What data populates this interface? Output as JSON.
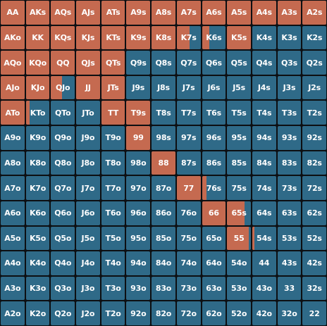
{
  "colors": {
    "raise": "#c56a50",
    "fold": "#2f6a88",
    "background": "#0d0f12",
    "text": "#ffffff"
  },
  "hands": [
    [
      "AA",
      "AKs",
      "AQs",
      "AJs",
      "ATs",
      "A9s",
      "A8s",
      "A7s",
      "A6s",
      "A5s",
      "A4s",
      "A3s",
      "A2s"
    ],
    [
      "AKo",
      "KK",
      "KQs",
      "KJs",
      "KTs",
      "K9s",
      "K8s",
      "K7s",
      "K6s",
      "K5s",
      "K4s",
      "K3s",
      "K2s"
    ],
    [
      "AQo",
      "KQo",
      "QQ",
      "QJs",
      "QTs",
      "Q9s",
      "Q8s",
      "Q7s",
      "Q6s",
      "Q5s",
      "Q4s",
      "Q3s",
      "Q2s"
    ],
    [
      "AJo",
      "KJo",
      "QJo",
      "JJ",
      "JTs",
      "J9s",
      "J8s",
      "J7s",
      "J6s",
      "J5s",
      "J4s",
      "J3s",
      "J2s"
    ],
    [
      "ATo",
      "KTo",
      "QTo",
      "JTo",
      "TT",
      "T9s",
      "T8s",
      "T7s",
      "T6s",
      "T5s",
      "T4s",
      "T3s",
      "T2s"
    ],
    [
      "A9o",
      "K9o",
      "Q9o",
      "J9o",
      "T9o",
      "99",
      "98s",
      "97s",
      "96s",
      "95s",
      "94s",
      "93s",
      "92s"
    ],
    [
      "A8o",
      "K8o",
      "Q8o",
      "J8o",
      "T8o",
      "98o",
      "88",
      "87s",
      "86s",
      "85s",
      "84s",
      "83s",
      "82s"
    ],
    [
      "A7o",
      "K7o",
      "Q7o",
      "J7o",
      "T7o",
      "97o",
      "87o",
      "77",
      "76s",
      "75s",
      "74s",
      "73s",
      "72s"
    ],
    [
      "A6o",
      "K6o",
      "Q6o",
      "J6o",
      "T6o",
      "96o",
      "86o",
      "76o",
      "66",
      "65s",
      "64s",
      "63s",
      "62s"
    ],
    [
      "A5o",
      "K5o",
      "Q5o",
      "J5o",
      "T5o",
      "95o",
      "85o",
      "75o",
      "65o",
      "55",
      "54s",
      "53s",
      "52s"
    ],
    [
      "A4o",
      "K4o",
      "Q4o",
      "J4o",
      "T4o",
      "94o",
      "84o",
      "74o",
      "64o",
      "54o",
      "44",
      "43s",
      "42s"
    ],
    [
      "A3o",
      "K3o",
      "Q3o",
      "J3o",
      "T3o",
      "93o",
      "83o",
      "73o",
      "63o",
      "53o",
      "43o",
      "33",
      "32s"
    ],
    [
      "A2o",
      "K2o",
      "Q2o",
      "J2o",
      "T2o",
      "92o",
      "82o",
      "72o",
      "62o",
      "52o",
      "42o",
      "32o",
      "22"
    ]
  ],
  "raise_frequency": [
    [
      1,
      1,
      1,
      1,
      1,
      1,
      1,
      1,
      1,
      1,
      1,
      1,
      1
    ],
    [
      1,
      1,
      1,
      1,
      1,
      1,
      1,
      0.55,
      0.3,
      1,
      0,
      0,
      0
    ],
    [
      1,
      1,
      1,
      1,
      1,
      0,
      0,
      0,
      0,
      0,
      0,
      0,
      0
    ],
    [
      1,
      1,
      0.45,
      1,
      1,
      0,
      0,
      0,
      0,
      0,
      0,
      0,
      0
    ],
    [
      1,
      0.15,
      0,
      0,
      1,
      1,
      0,
      0,
      0,
      0,
      0,
      0,
      0
    ],
    [
      0,
      0,
      0,
      0,
      0,
      1,
      0,
      0,
      0,
      0,
      0,
      0,
      0
    ],
    [
      0,
      0,
      0,
      0,
      0,
      0,
      1,
      0,
      0,
      0,
      0,
      0,
      0
    ],
    [
      0,
      0,
      0,
      0,
      0,
      0,
      0,
      1,
      0.2,
      0,
      0,
      0,
      0
    ],
    [
      0,
      0,
      0,
      0,
      0,
      0,
      0,
      0,
      1,
      0.75,
      0,
      0,
      0
    ],
    [
      0,
      0,
      0,
      0,
      0,
      0,
      0,
      0,
      0,
      0.9,
      0.1,
      0,
      0
    ],
    [
      0,
      0,
      0,
      0,
      0,
      0,
      0,
      0,
      0,
      0,
      0,
      0,
      0
    ],
    [
      0,
      0,
      0,
      0,
      0,
      0,
      0,
      0,
      0,
      0,
      0,
      0,
      0
    ],
    [
      0,
      0,
      0,
      0,
      0,
      0,
      0,
      0,
      0,
      0,
      0,
      0,
      0
    ]
  ]
}
